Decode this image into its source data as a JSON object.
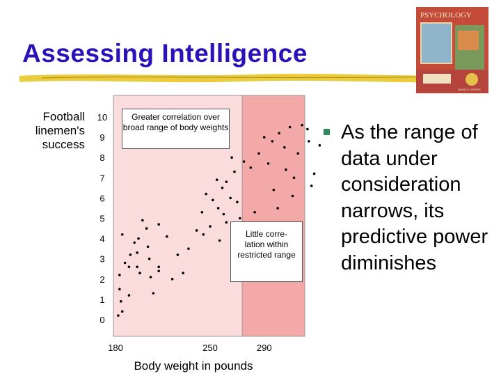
{
  "slide": {
    "title": "Assessing Intelligence",
    "book_title": "PSYCHOLOGY",
    "book_author": "DAVID G. MYERS",
    "bullet_text": "As the range of data under consideration narrows, its predictive power diminishes"
  },
  "colors": {
    "title": "#2b12b8",
    "highlight": "#f4a9a9",
    "plot_bg": "#fbdcdc",
    "bullet_square": "#2e8b57"
  },
  "chart_data": {
    "type": "scatter",
    "title": "",
    "ylabel": "Football linemen's success",
    "xlabel": "Body weight in pounds",
    "y_ticks": [
      "10",
      "9",
      "8",
      "7",
      "6",
      "5",
      "4",
      "3",
      "2",
      "1",
      "0"
    ],
    "x_ticks": [
      "180",
      "250",
      "290"
    ],
    "ylim": [
      0,
      10
    ],
    "grid": false,
    "annotations": [
      "Greater correlation over broad range of body weights",
      "Little corre- lation within restricted range"
    ],
    "points": [
      {
        "x": 182,
        "y": 0.2
      },
      {
        "x": 185,
        "y": 0.4
      },
      {
        "x": 184,
        "y": 0.9
      },
      {
        "x": 183,
        "y": 1.5
      },
      {
        "x": 190,
        "y": 1.2
      },
      {
        "x": 183,
        "y": 2.2
      },
      {
        "x": 190,
        "y": 2.6
      },
      {
        "x": 187,
        "y": 2.8
      },
      {
        "x": 196,
        "y": 2.6
      },
      {
        "x": 198,
        "y": 2.3
      },
      {
        "x": 206,
        "y": 2.1
      },
      {
        "x": 212,
        "y": 2.4
      },
      {
        "x": 191,
        "y": 3.2
      },
      {
        "x": 196,
        "y": 3.3
      },
      {
        "x": 204,
        "y": 3.6
      },
      {
        "x": 194,
        "y": 3.8
      },
      {
        "x": 185,
        "y": 4.2
      },
      {
        "x": 197,
        "y": 4.0
      },
      {
        "x": 203,
        "y": 4.5
      },
      {
        "x": 205,
        "y": 3.0
      },
      {
        "x": 208,
        "y": 1.3
      },
      {
        "x": 212,
        "y": 2.6
      },
      {
        "x": 222,
        "y": 2.0
      },
      {
        "x": 230,
        "y": 2.3
      },
      {
        "x": 226,
        "y": 3.2
      },
      {
        "x": 234,
        "y": 3.5
      },
      {
        "x": 200,
        "y": 4.9
      },
      {
        "x": 212,
        "y": 4.7
      },
      {
        "x": 218,
        "y": 4.1
      },
      {
        "x": 240,
        "y": 4.4
      },
      {
        "x": 245,
        "y": 4.2
      },
      {
        "x": 250,
        "y": 4.6
      },
      {
        "x": 257,
        "y": 3.9
      },
      {
        "x": 244,
        "y": 5.3
      },
      {
        "x": 256,
        "y": 5.5
      },
      {
        "x": 252,
        "y": 5.9
      },
      {
        "x": 260,
        "y": 5.2
      },
      {
        "x": 268,
        "y": 4.5
      },
      {
        "x": 262,
        "y": 4.8
      },
      {
        "x": 247,
        "y": 6.2
      },
      {
        "x": 259,
        "y": 6.5
      },
      {
        "x": 265,
        "y": 6.0
      },
      {
        "x": 270,
        "y": 5.8
      },
      {
        "x": 272,
        "y": 5.0
      },
      {
        "x": 255,
        "y": 6.9
      },
      {
        "x": 262,
        "y": 6.8
      },
      {
        "x": 268,
        "y": 7.3
      },
      {
        "x": 275,
        "y": 7.8
      },
      {
        "x": 266,
        "y": 8.0
      },
      {
        "x": 280,
        "y": 7.5
      },
      {
        "x": 283,
        "y": 5.3
      },
      {
        "x": 286,
        "y": 8.2
      },
      {
        "x": 293,
        "y": 7.7
      },
      {
        "x": 296,
        "y": 8.8
      },
      {
        "x": 301,
        "y": 9.2
      },
      {
        "x": 305,
        "y": 8.5
      },
      {
        "x": 309,
        "y": 9.5
      },
      {
        "x": 312,
        "y": 7.0
      },
      {
        "x": 318,
        "y": 9.6
      },
      {
        "x": 322,
        "y": 9.4
      },
      {
        "x": 327,
        "y": 7.2
      },
      {
        "x": 331,
        "y": 8.6
      },
      {
        "x": 297,
        "y": 6.4
      },
      {
        "x": 306,
        "y": 7.4
      },
      {
        "x": 315,
        "y": 8.2
      },
      {
        "x": 323,
        "y": 8.8
      },
      {
        "x": 300,
        "y": 5.5
      },
      {
        "x": 311,
        "y": 6.1
      },
      {
        "x": 290,
        "y": 9.0
      },
      {
        "x": 325,
        "y": 6.6
      }
    ]
  }
}
